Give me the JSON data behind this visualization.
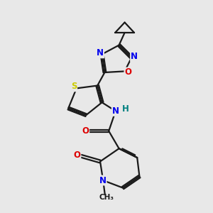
{
  "background_color": "#e8e8e8",
  "bond_color": "#1a1a1a",
  "bond_width": 1.6,
  "atom_colors": {
    "N": "#0000ee",
    "O": "#dd0000",
    "S": "#cccc00",
    "H": "#008080",
    "C": "#1a1a1a"
  },
  "font_size": 8.5
}
